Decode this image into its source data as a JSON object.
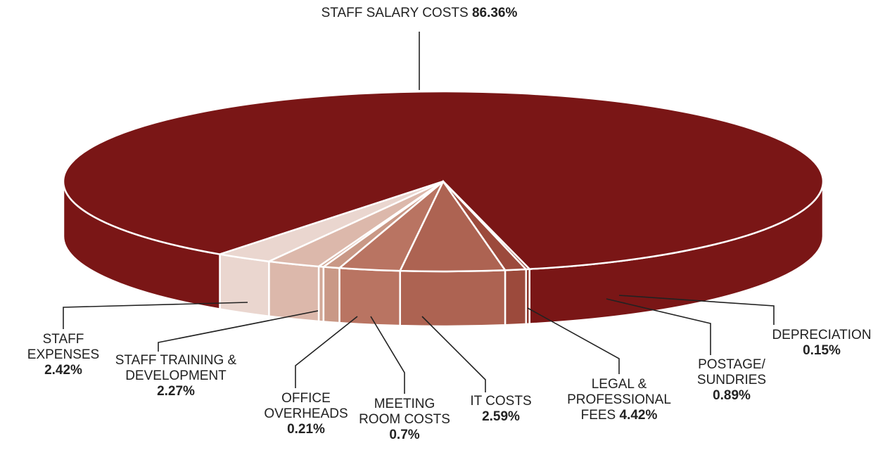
{
  "chart_data": {
    "type": "pie",
    "categories": [
      "STAFF SALARY COSTS",
      "STAFF EXPENSES",
      "STAFF TRAINING & DEVELOPMENT",
      "OFFICE OVERHEADS",
      "MEETING ROOM COSTS",
      "IT COSTS",
      "LEGAL & PROFESSIONAL FEES",
      "POSTAGE/ SUNDRIES",
      "DEPRECIATION"
    ],
    "values": [
      86.36,
      2.42,
      2.27,
      0.21,
      0.7,
      2.59,
      4.42,
      0.89,
      0.15
    ],
    "value_labels": [
      "86.36%",
      "2.42%",
      "2.27%",
      "0.21%",
      "0.7%",
      "2.59%",
      "4.42%",
      "0.89%",
      "0.15%"
    ],
    "colors": [
      "#7a1616",
      "#ead6cf",
      "#dcb8ab",
      "#d2a897",
      "#c99886",
      "#b97462",
      "#ad6352",
      "#9c4a3c",
      "#8c382c"
    ]
  }
}
